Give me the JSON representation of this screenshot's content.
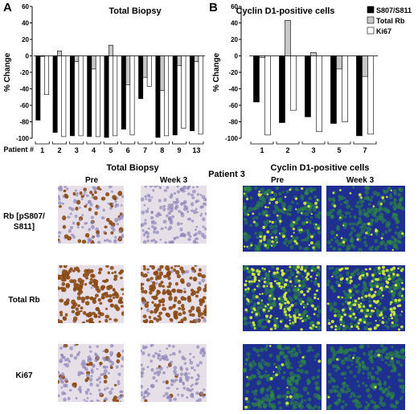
{
  "panels": {
    "a_letter": "A",
    "b_letter": "B",
    "bottom_left_title": "Total Biopsy",
    "bottom_patient": "Patient 3",
    "bottom_right_title": "Cyclin D1-positive cells",
    "pre_label": "Pre",
    "week3_label": "Week 3",
    "row_labels": [
      "Rb [pS807/",
      "S811]",
      "Total Rb",
      "Ki67"
    ]
  },
  "colors": {
    "s807": "#000000",
    "total_rb": "#c8c8c8",
    "ki67": "#ffffff",
    "ihc_bg": "#e7dfe8",
    "ihc_nuc_blue": "#8e86b8",
    "ihc_nuc_brown": "#8a4a14",
    "if_green": "#2f8f3a",
    "if_blue": "#1e2f8f",
    "if_yellow": "#d8f03a"
  },
  "chart_data": [
    {
      "type": "bar",
      "title": "Total Biopsy",
      "ylabel": "% Change",
      "xlabel": "Patient #",
      "ylim": [
        -100,
        60
      ],
      "yticks": [
        60,
        40,
        20,
        0,
        -20,
        -40,
        -60,
        -80,
        -100
      ],
      "categories": [
        "1",
        "2",
        "3",
        "4",
        "5",
        "6",
        "7",
        "8",
        "9",
        "13"
      ],
      "series": [
        {
          "name": "S807/S811",
          "values": [
            -78,
            -93,
            -97,
            -98,
            -99,
            -89,
            -52,
            -99,
            -96,
            -91
          ]
        },
        {
          "name": "Total Rb",
          "values": [
            0,
            6,
            -7,
            -16,
            13,
            -35,
            -26,
            -42,
            -12,
            -7
          ]
        },
        {
          "name": "Ki67",
          "values": [
            -47,
            -98,
            -97,
            -98,
            -97,
            -96,
            -37,
            -97,
            -88,
            -95
          ]
        }
      ]
    },
    {
      "type": "bar",
      "title": "Cyclin D1-positive cells",
      "ylabel": "% Change",
      "ylim": [
        -100,
        60
      ],
      "yticks": [
        60,
        40,
        20,
        0,
        -20,
        -40,
        -60,
        -80,
        -100
      ],
      "categories": [
        "1",
        "2",
        "3",
        "5",
        "7"
      ],
      "legend": [
        "S807/S811",
        "Total Rb",
        "Ki67"
      ],
      "legend_position": "top-right",
      "series": [
        {
          "name": "S807/S811",
          "values": [
            -56,
            -81,
            -74,
            -82,
            -97
          ]
        },
        {
          "name": "Total Rb",
          "values": [
            -2,
            43,
            4,
            -16,
            -25
          ]
        },
        {
          "name": "Ki67",
          "values": [
            -96,
            -66,
            -92,
            -80,
            -95
          ]
        }
      ]
    }
  ]
}
